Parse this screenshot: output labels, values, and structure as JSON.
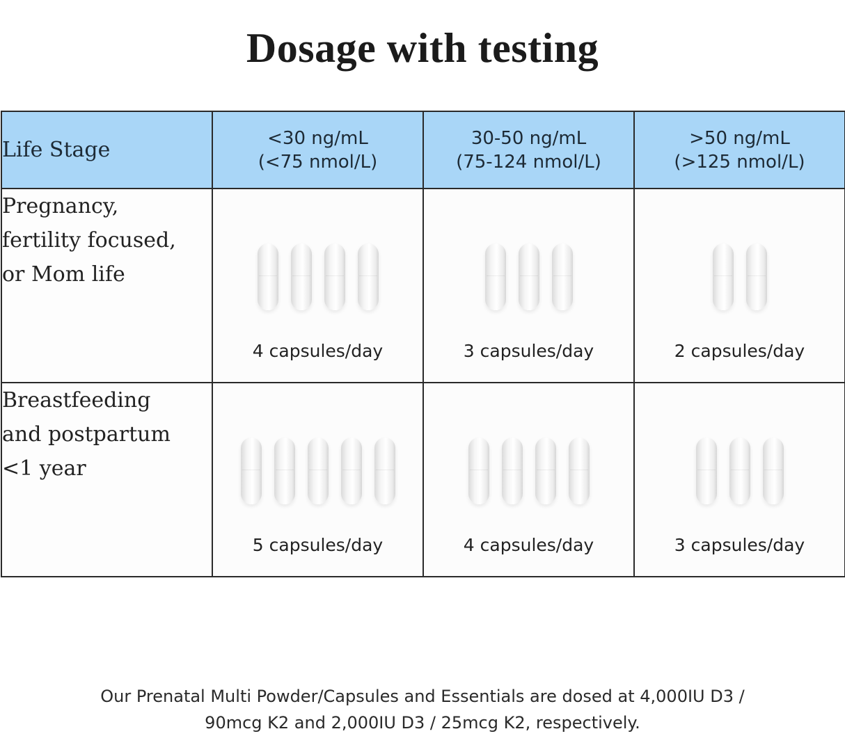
{
  "title": "Dosage with testing",
  "table": {
    "stage_header": "Life Stage",
    "level_headers": [
      {
        "line1": "<30 ng/mL",
        "line2": "(<75 nmol/L)"
      },
      {
        "line1": "30-50 ng/mL",
        "line2": "(75-124 nmol/L)"
      },
      {
        "line1": ">50 ng/mL",
        "line2": "(>125 nmol/L)"
      }
    ],
    "rows": [
      {
        "stage_lines": [
          "Pregnancy,",
          "fertility focused,",
          "or Mom life"
        ],
        "doses": [
          {
            "capsules": 4,
            "label": "4 capsules/day"
          },
          {
            "capsules": 3,
            "label": "3 capsules/day"
          },
          {
            "capsules": 2,
            "label": "2 capsules/day"
          }
        ]
      },
      {
        "stage_lines": [
          "Breastfeeding",
          "and postpartum",
          "<1 year"
        ],
        "doses": [
          {
            "capsules": 5,
            "label": "5 capsules/day"
          },
          {
            "capsules": 4,
            "label": "4 capsules/day"
          },
          {
            "capsules": 3,
            "label": "3 capsules/day"
          }
        ]
      }
    ]
  },
  "footnote": {
    "line1": "Our Prenatal Multi Powder/Capsules and Essentials are dosed at 4,000IU D3 /",
    "line2": "90mcg K2 and 2,000IU D3 / 25mcg K2, respectively."
  },
  "colors": {
    "header_background": "#a9d6f7",
    "grid_lines": "#2a2a2a",
    "capsule": "#f4f4f4"
  },
  "icons": {
    "capsule": "capsule-icon"
  }
}
